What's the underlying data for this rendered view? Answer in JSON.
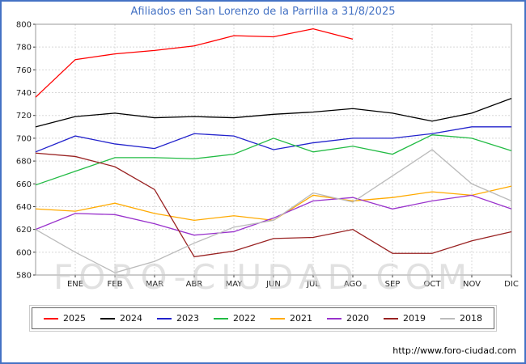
{
  "title": "Afiliados en San Lorenzo de la Parrilla a 31/8/2025",
  "watermark": "FORO-CIUDAD.COM",
  "footer_url": "http://www.foro-ciudad.com",
  "chart_data": {
    "type": "line",
    "title": "Afiliados en San Lorenzo de la Parrilla a 31/8/2025",
    "xlabel": "",
    "ylabel": "",
    "ylim": [
      580,
      800
    ],
    "ytick_step": 20,
    "grid": true,
    "legend_position": "bottom",
    "note": "first value of each series is plotted at the left axis, before ENE",
    "categories": [
      "ENE",
      "FEB",
      "MAR",
      "ABR",
      "MAY",
      "JUN",
      "JUL",
      "AGO",
      "SEP",
      "OCT",
      "NOV",
      "DIC"
    ],
    "series": [
      {
        "name": "2025",
        "color": "#ff0000",
        "values": [
          736,
          769,
          774,
          777,
          781,
          790,
          789,
          796,
          787,
          null,
          null,
          null,
          null
        ]
      },
      {
        "name": "2024",
        "color": "#000000",
        "values": [
          710,
          719,
          722,
          718,
          719,
          718,
          721,
          723,
          726,
          722,
          715,
          722,
          735
        ]
      },
      {
        "name": "2023",
        "color": "#2222cc",
        "values": [
          688,
          702,
          695,
          691,
          704,
          702,
          690,
          696,
          700,
          700,
          704,
          710,
          710
        ]
      },
      {
        "name": "2022",
        "color": "#22bb44",
        "values": [
          659,
          671,
          683,
          683,
          682,
          686,
          700,
          688,
          693,
          686,
          703,
          700,
          689
        ]
      },
      {
        "name": "2021",
        "color": "#ffaa00",
        "values": [
          638,
          636,
          643,
          634,
          628,
          632,
          628,
          650,
          645,
          648,
          653,
          650,
          658
        ]
      },
      {
        "name": "2020",
        "color": "#9932cc",
        "values": [
          620,
          634,
          633,
          625,
          615,
          618,
          630,
          645,
          648,
          638,
          645,
          650,
          638
        ]
      },
      {
        "name": "2019",
        "color": "#992222",
        "values": [
          687,
          684,
          675,
          655,
          596,
          601,
          612,
          613,
          620,
          599,
          599,
          610,
          618
        ]
      },
      {
        "name": "2018",
        "color": "#bbbbbb",
        "values": [
          620,
          600,
          582,
          592,
          608,
          622,
          628,
          652,
          644,
          667,
          690,
          660,
          645
        ]
      }
    ]
  }
}
